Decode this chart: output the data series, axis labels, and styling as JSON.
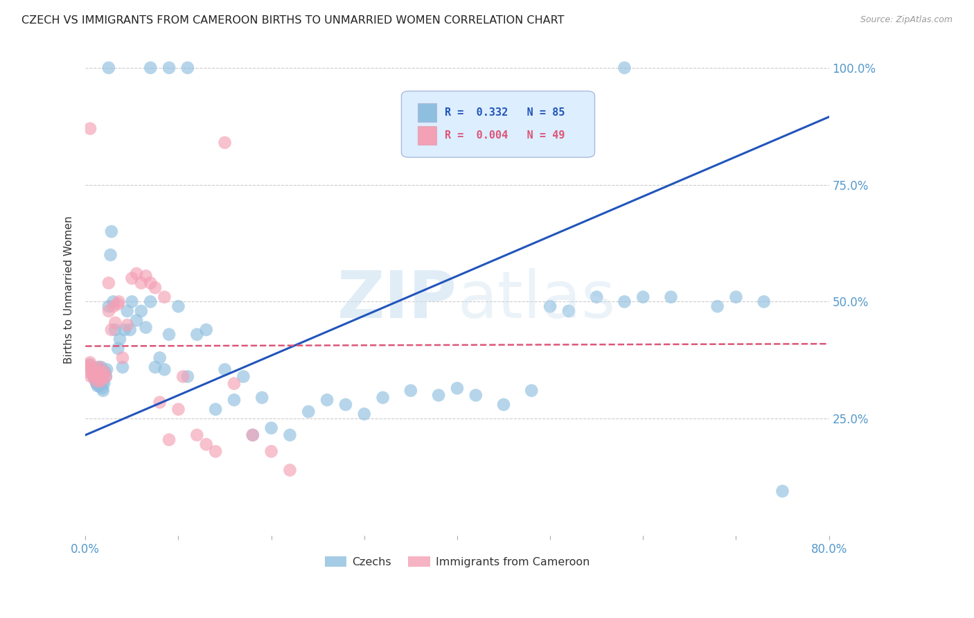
{
  "title": "CZECH VS IMMIGRANTS FROM CAMEROON BIRTHS TO UNMARRIED WOMEN CORRELATION CHART",
  "source": "Source: ZipAtlas.com",
  "ylabel": "Births to Unmarried Women",
  "xlim": [
    0.0,
    0.8
  ],
  "ylim": [
    0.0,
    1.05
  ],
  "xticks": [
    0.0,
    0.1,
    0.2,
    0.3,
    0.4,
    0.5,
    0.6,
    0.7,
    0.8
  ],
  "xticklabels": [
    "0.0%",
    "",
    "",
    "",
    "",
    "",
    "",
    "",
    "80.0%"
  ],
  "yticks": [
    0.0,
    0.25,
    0.5,
    0.75,
    1.0
  ],
  "yticklabels": [
    "",
    "25.0%",
    "50.0%",
    "75.0%",
    "100.0%"
  ],
  "czech_R": 0.332,
  "czech_N": 85,
  "cameroon_R": 0.004,
  "cameroon_N": 49,
  "czech_color": "#8fbfdf",
  "cameroon_color": "#f4a0b5",
  "czech_line_color": "#2255bb",
  "cameroon_line_color": "#dd5577",
  "watermark_text": "ZIPatlas",
  "background_color": "#ffffff",
  "grid_color": "#cccccc",
  "axis_label_color": "#5599cc",
  "czech_scatter_x": [
    0.005,
    0.007,
    0.008,
    0.009,
    0.01,
    0.01,
    0.011,
    0.011,
    0.012,
    0.012,
    0.013,
    0.013,
    0.014,
    0.014,
    0.015,
    0.015,
    0.016,
    0.016,
    0.017,
    0.017,
    0.018,
    0.019,
    0.019,
    0.02,
    0.021,
    0.022,
    0.023,
    0.025,
    0.027,
    0.028,
    0.03,
    0.032,
    0.035,
    0.037,
    0.04,
    0.042,
    0.045,
    0.048,
    0.05,
    0.055,
    0.06,
    0.065,
    0.07,
    0.075,
    0.08,
    0.085,
    0.09,
    0.1,
    0.11,
    0.12,
    0.13,
    0.14,
    0.15,
    0.16,
    0.17,
    0.18,
    0.19,
    0.2,
    0.22,
    0.24,
    0.26,
    0.28,
    0.3,
    0.32,
    0.35,
    0.38,
    0.4,
    0.42,
    0.45,
    0.48,
    0.5,
    0.52,
    0.55,
    0.58,
    0.6,
    0.63,
    0.68,
    0.7,
    0.73,
    0.75,
    0.025,
    0.07,
    0.09,
    0.11,
    0.58
  ],
  "czech_scatter_y": [
    0.365,
    0.355,
    0.345,
    0.34,
    0.335,
    0.35,
    0.33,
    0.345,
    0.325,
    0.34,
    0.32,
    0.35,
    0.33,
    0.36,
    0.32,
    0.345,
    0.325,
    0.355,
    0.34,
    0.36,
    0.315,
    0.31,
    0.33,
    0.325,
    0.35,
    0.34,
    0.355,
    0.49,
    0.6,
    0.65,
    0.5,
    0.44,
    0.4,
    0.42,
    0.36,
    0.44,
    0.48,
    0.44,
    0.5,
    0.46,
    0.48,
    0.445,
    0.5,
    0.36,
    0.38,
    0.355,
    0.43,
    0.49,
    0.34,
    0.43,
    0.44,
    0.27,
    0.355,
    0.29,
    0.34,
    0.215,
    0.295,
    0.23,
    0.215,
    0.265,
    0.29,
    0.28,
    0.26,
    0.295,
    0.31,
    0.3,
    0.315,
    0.3,
    0.28,
    0.31,
    0.49,
    0.48,
    0.51,
    0.5,
    0.51,
    0.51,
    0.49,
    0.51,
    0.5,
    0.095,
    1.0,
    1.0,
    1.0,
    1.0,
    1.0
  ],
  "cameroon_scatter_x": [
    0.002,
    0.003,
    0.004,
    0.005,
    0.006,
    0.007,
    0.008,
    0.009,
    0.01,
    0.011,
    0.012,
    0.013,
    0.014,
    0.015,
    0.016,
    0.017,
    0.018,
    0.019,
    0.02,
    0.022,
    0.025,
    0.028,
    0.032,
    0.036,
    0.04,
    0.045,
    0.05,
    0.06,
    0.07,
    0.08,
    0.09,
    0.1,
    0.12,
    0.14,
    0.16,
    0.18,
    0.2,
    0.22,
    0.025,
    0.03,
    0.035,
    0.055,
    0.065,
    0.075,
    0.085,
    0.105,
    0.13,
    0.15,
    0.005
  ],
  "cameroon_scatter_y": [
    0.36,
    0.35,
    0.365,
    0.37,
    0.34,
    0.36,
    0.35,
    0.34,
    0.355,
    0.345,
    0.33,
    0.34,
    0.35,
    0.36,
    0.33,
    0.345,
    0.335,
    0.34,
    0.35,
    0.34,
    0.48,
    0.44,
    0.455,
    0.5,
    0.38,
    0.45,
    0.55,
    0.54,
    0.54,
    0.285,
    0.205,
    0.27,
    0.215,
    0.18,
    0.325,
    0.215,
    0.18,
    0.14,
    0.54,
    0.49,
    0.495,
    0.56,
    0.555,
    0.53,
    0.51,
    0.34,
    0.195,
    0.84,
    0.87
  ],
  "czech_line_x": [
    0.0,
    0.8
  ],
  "czech_line_y": [
    0.215,
    0.895
  ],
  "cameroon_line_x": [
    0.0,
    0.8
  ],
  "cameroon_line_y": [
    0.405,
    0.41
  ],
  "legend_R_czech": "R =  0.332   N = 85",
  "legend_R_cam": "R =  0.004   N = 49",
  "legend_label_czech": "Czechs",
  "legend_label_cam": "Immigrants from Cameroon"
}
